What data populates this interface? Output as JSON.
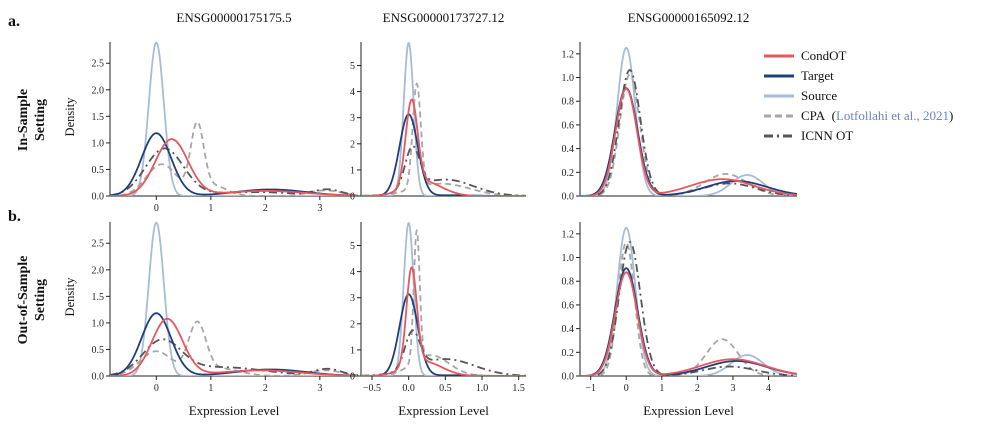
{
  "figure": {
    "panel_labels": [
      "a.",
      "b."
    ],
    "row_labels": [
      [
        "In-Sample",
        "Setting"
      ],
      [
        "Out-of-Sample",
        "Setting"
      ]
    ],
    "ylabel": "Density",
    "xlabel": "Expression Level",
    "legend": {
      "entries": [
        {
          "name": "CondOT",
          "color": "#e8575e",
          "dash": "solid"
        },
        {
          "name": "Target",
          "color": "#1f3f7a",
          "dash": "solid"
        },
        {
          "name": "Source",
          "color": "#a7bcd6",
          "dash": "solid"
        },
        {
          "name": "CPA",
          "color": "#a6a6a6",
          "dash": "dashed"
        },
        {
          "name": "ICNN OT",
          "color": "#555555",
          "dash": "dashdot"
        }
      ],
      "cpa_citation_open": "(",
      "cpa_citation_link": "Lotfollahi et al., 2021",
      "cpa_citation_close": ")"
    }
  },
  "chart_data": [
    {
      "type": "line",
      "id": "a1",
      "title": "ENSG00000175175.5",
      "row": "In-Sample Setting",
      "xlim": [
        -0.85,
        3.7
      ],
      "ylim": [
        0,
        2.9
      ],
      "xticks": [
        0,
        1,
        2,
        3
      ],
      "yticks": [
        0.0,
        0.5,
        1.0,
        1.5,
        2.0,
        2.5
      ],
      "ytick_labels": [
        "0.0",
        "0.5",
        "1.0",
        "1.5",
        "2.0",
        "2.5"
      ],
      "xlabel": "",
      "series": [
        {
          "name": "Source",
          "components": [
            [
              1.0,
              0.0,
              0.138
            ]
          ]
        },
        {
          "name": "Target",
          "components": [
            [
              0.8,
              0.0,
              0.27
            ],
            [
              0.2,
              2.1,
              0.65
            ]
          ]
        },
        {
          "name": "CondOT",
          "components": [
            [
              0.8,
              0.28,
              0.3
            ],
            [
              0.18,
              2.0,
              0.75
            ]
          ]
        },
        {
          "name": "CPA",
          "components": [
            [
              0.42,
              0.1,
              0.28
            ],
            [
              0.38,
              0.75,
              0.12
            ],
            [
              0.12,
              1.05,
              0.25
            ],
            [
              0.08,
              3.1,
              0.3
            ]
          ]
        },
        {
          "name": "ICNN OT",
          "components": [
            [
              0.78,
              0.15,
              0.35
            ],
            [
              0.14,
              1.8,
              0.75
            ],
            [
              0.07,
              3.15,
              0.25
            ]
          ]
        }
      ]
    },
    {
      "type": "line",
      "id": "a2",
      "title": "ENSG00000173727.12",
      "row": "In-Sample Setting",
      "xlim": [
        -0.65,
        1.6
      ],
      "ylim": [
        0,
        5.9
      ],
      "xticks": [],
      "yticks": [
        0,
        1,
        2,
        3,
        4,
        5
      ],
      "ytick_labels": [
        "0",
        "1",
        "2",
        "3",
        "4",
        "5"
      ],
      "xlabel": "",
      "series": [
        {
          "name": "Source",
          "components": [
            [
              1.0,
              0.0,
              0.068
            ]
          ]
        },
        {
          "name": "Target",
          "components": [
            [
              0.98,
              0.0,
              0.125
            ],
            [
              0.02,
              0.6,
              0.3
            ]
          ]
        },
        {
          "name": "CondOT",
          "components": [
            [
              0.65,
              0.04,
              0.08
            ],
            [
              0.35,
              0.2,
              0.25
            ]
          ]
        },
        {
          "name": "CPA",
          "components": [
            [
              0.55,
              0.11,
              0.055
            ],
            [
              0.45,
              0.45,
              0.38
            ]
          ]
        },
        {
          "name": "ICNN OT",
          "components": [
            [
              0.4,
              0.05,
              0.1
            ],
            [
              0.6,
              0.5,
              0.38
            ]
          ]
        }
      ]
    },
    {
      "type": "line",
      "id": "a3",
      "title": "ENSG00000165092.12",
      "row": "In-Sample Setting",
      "xlim": [
        -1.3,
        4.8
      ],
      "ylim": [
        0,
        1.3
      ],
      "xticks": [],
      "yticks": [
        0.0,
        0.2,
        0.4,
        0.6,
        0.8,
        1.0,
        1.2
      ],
      "ytick_labels": [
        "0.0",
        "0.2",
        "0.4",
        "0.6",
        "0.8",
        "1.0",
        "1.2"
      ],
      "xlabel": "",
      "series": [
        {
          "name": "Source",
          "components": [
            [
              0.8,
              0.0,
              0.255
            ],
            [
              0.2,
              3.4,
              0.45
            ]
          ]
        },
        {
          "name": "Target",
          "components": [
            [
              0.73,
              0.0,
              0.32
            ],
            [
              0.27,
              3.1,
              0.85
            ]
          ]
        },
        {
          "name": "CondOT",
          "components": [
            [
              0.68,
              0.0,
              0.3
            ],
            [
              0.32,
              2.7,
              0.9
            ]
          ]
        },
        {
          "name": "CPA",
          "components": [
            [
              0.72,
              0.1,
              0.28
            ],
            [
              0.28,
              2.8,
              0.6
            ]
          ]
        },
        {
          "name": "ICNN OT",
          "components": [
            [
              0.8,
              0.1,
              0.3
            ],
            [
              0.2,
              2.9,
              0.75
            ]
          ]
        }
      ]
    },
    {
      "type": "line",
      "id": "b1",
      "title": "",
      "row": "Out-of-Sample Setting",
      "xlim": [
        -0.85,
        3.7
      ],
      "ylim": [
        0,
        2.9
      ],
      "xticks": [
        0,
        1,
        2,
        3
      ],
      "yticks": [
        0.0,
        0.5,
        1.0,
        1.5,
        2.0,
        2.5
      ],
      "ytick_labels": [
        "0.0",
        "0.5",
        "1.0",
        "1.5",
        "2.0",
        "2.5"
      ],
      "xlabel": "Expression Level",
      "series": [
        {
          "name": "Source",
          "components": [
            [
              1.0,
              0.0,
              0.138
            ]
          ]
        },
        {
          "name": "Target",
          "components": [
            [
              0.8,
              0.0,
              0.27
            ],
            [
              0.2,
              2.1,
              0.65
            ]
          ]
        },
        {
          "name": "CondOT",
          "components": [
            [
              0.75,
              0.2,
              0.28
            ],
            [
              0.2,
              1.9,
              0.75
            ]
          ]
        },
        {
          "name": "CPA",
          "components": [
            [
              0.35,
              0.0,
              0.3
            ],
            [
              0.38,
              0.75,
              0.16
            ],
            [
              0.12,
              1.2,
              0.35
            ],
            [
              0.08,
              3.1,
              0.3
            ]
          ]
        },
        {
          "name": "ICNN OT",
          "components": [
            [
              0.55,
              0.1,
              0.35
            ],
            [
              0.33,
              1.2,
              0.8
            ],
            [
              0.08,
              3.15,
              0.25
            ]
          ]
        }
      ]
    },
    {
      "type": "line",
      "id": "b2",
      "title": "",
      "row": "Out-of-Sample Setting",
      "xlim": [
        -0.65,
        1.6
      ],
      "ylim": [
        0,
        5.9
      ],
      "xticks": [
        -0.5,
        0.0,
        0.5,
        1.0,
        1.5
      ],
      "yticks": [
        0,
        1,
        2,
        3,
        4,
        5
      ],
      "ytick_labels": [
        "0",
        "1",
        "2",
        "3",
        "4",
        "5"
      ],
      "xlabel": "Expression Level",
      "series": [
        {
          "name": "Source",
          "components": [
            [
              1.0,
              0.0,
              0.068
            ]
          ]
        },
        {
          "name": "Target",
          "components": [
            [
              0.98,
              0.0,
              0.125
            ],
            [
              0.02,
              0.6,
              0.3
            ]
          ]
        },
        {
          "name": "CondOT",
          "components": [
            [
              0.65,
              0.04,
              0.07
            ],
            [
              0.35,
              0.2,
              0.25
            ]
          ]
        },
        {
          "name": "CPA",
          "components": [
            [
              0.5,
              0.11,
              0.04
            ],
            [
              0.5,
              0.3,
              0.25
            ]
          ]
        },
        {
          "name": "ICNN OT",
          "components": [
            [
              0.35,
              0.05,
              0.1
            ],
            [
              0.65,
              0.5,
              0.4
            ]
          ]
        }
      ]
    },
    {
      "type": "line",
      "id": "b3",
      "title": "",
      "row": "Out-of-Sample Setting",
      "xlim": [
        -1.3,
        4.8
      ],
      "ylim": [
        0,
        1.3
      ],
      "xticks": [
        -1,
        0,
        1,
        2,
        3,
        4
      ],
      "yticks": [
        0.0,
        0.2,
        0.4,
        0.6,
        0.8,
        1.0,
        1.2
      ],
      "ytick_labels": [
        "0.0",
        "0.2",
        "0.4",
        "0.6",
        "0.8",
        "1.0",
        "1.2"
      ],
      "xlabel": "Expression Level",
      "series": [
        {
          "name": "Source",
          "components": [
            [
              0.8,
              0.0,
              0.255
            ],
            [
              0.2,
              3.4,
              0.45
            ]
          ]
        },
        {
          "name": "Target",
          "components": [
            [
              0.73,
              0.0,
              0.32
            ],
            [
              0.27,
              3.1,
              0.85
            ]
          ]
        },
        {
          "name": "CondOT",
          "components": [
            [
              0.68,
              0.0,
              0.31
            ],
            [
              0.32,
              3.0,
              0.9
            ]
          ]
        },
        {
          "name": "CPA",
          "components": [
            [
              0.65,
              0.0,
              0.23
            ],
            [
              0.35,
              2.7,
              0.45
            ]
          ]
        },
        {
          "name": "ICNN OT",
          "components": [
            [
              0.85,
              0.1,
              0.3
            ],
            [
              0.15,
              2.9,
              0.75
            ]
          ]
        }
      ]
    }
  ]
}
